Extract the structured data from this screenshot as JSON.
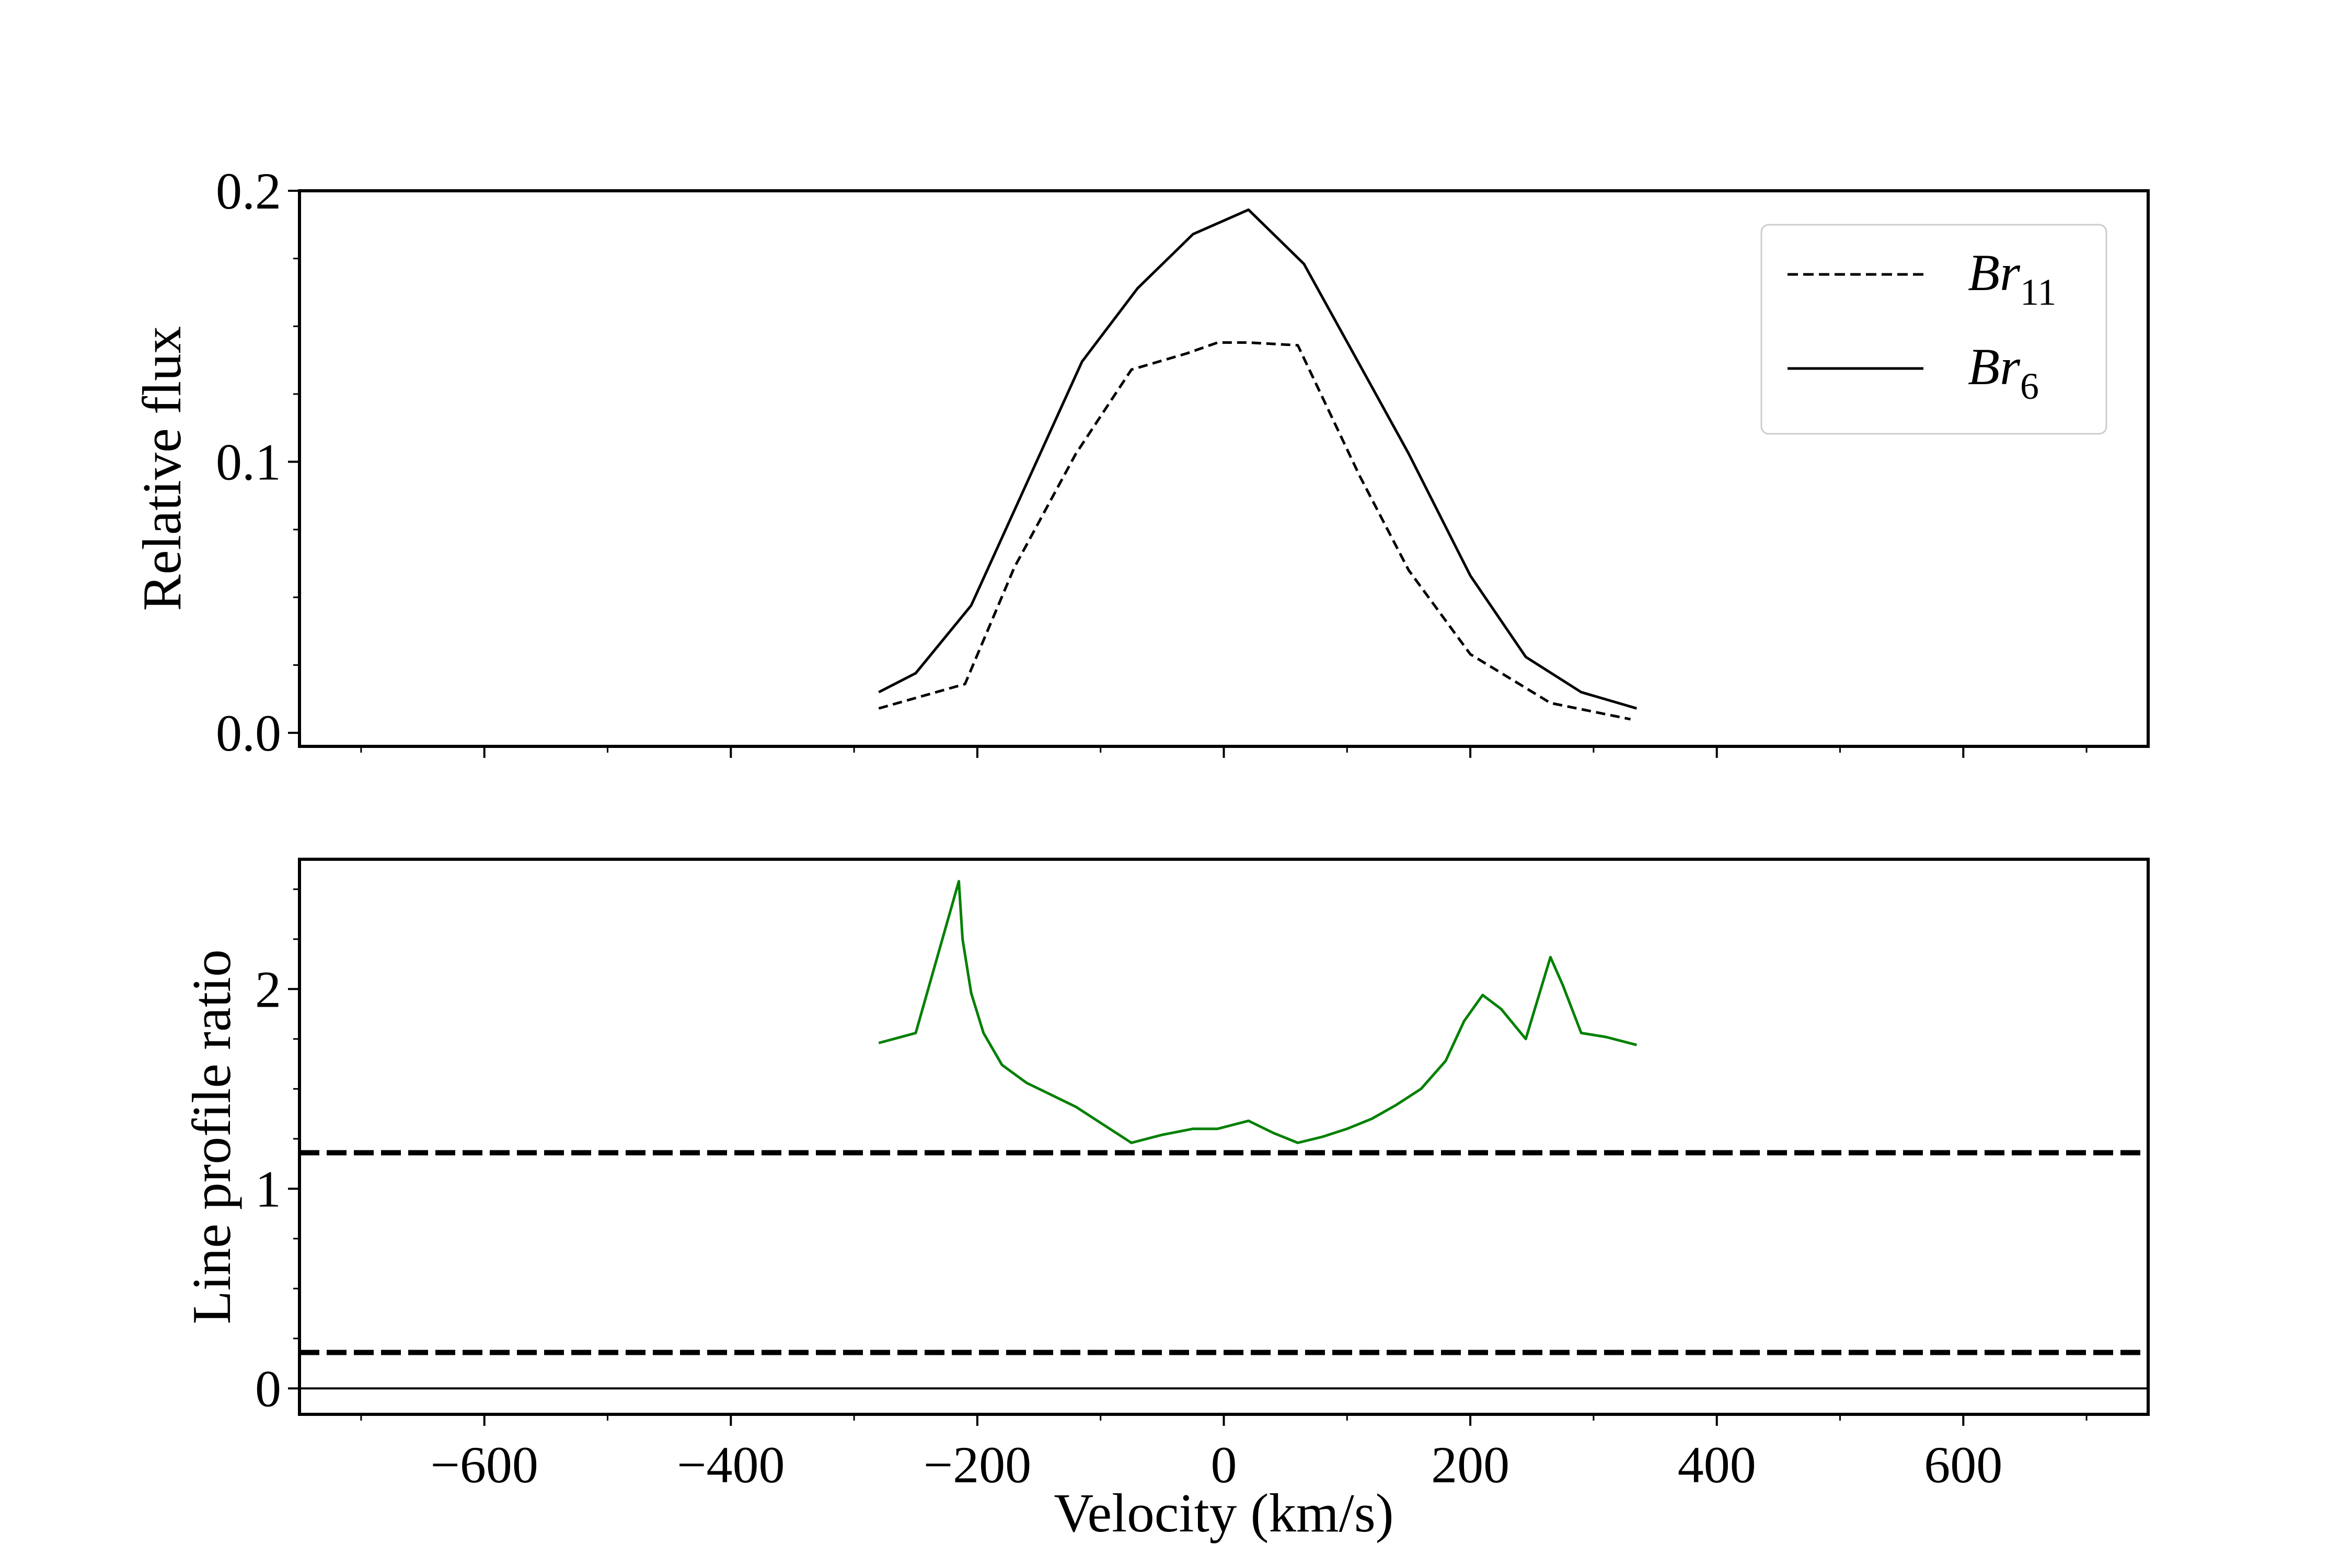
{
  "chart_data": [
    {
      "type": "line",
      "panel": "top",
      "xlabel": "",
      "ylabel": "Relative flux",
      "xlim": [
        -750,
        750
      ],
      "ylim": [
        -0.005,
        0.2
      ],
      "x_ticks": [
        -600,
        -400,
        -200,
        0,
        200,
        400,
        600
      ],
      "y_ticks": [
        0.0,
        0.1,
        0.2
      ],
      "y_tick_labels": [
        "0.0",
        "0.1",
        "0.2"
      ],
      "legend_placement": "top-right",
      "series": [
        {
          "name": "Br",
          "name_subscript": "11",
          "style": "dashed",
          "color": "#000000",
          "x": [
            -280,
            -210,
            -170,
            -120,
            -75,
            -30,
            -5,
            20,
            60,
            110,
            150,
            200,
            265,
            330
          ],
          "y": [
            0.009,
            0.018,
            0.061,
            0.103,
            0.134,
            0.14,
            0.144,
            0.144,
            0.143,
            0.095,
            0.06,
            0.029,
            0.011,
            0.005
          ]
        },
        {
          "name": "Br",
          "name_subscript": "6",
          "style": "solid",
          "color": "#000000",
          "x": [
            -280,
            -250,
            -205,
            -160,
            -115,
            -70,
            -25,
            20,
            65,
            110,
            150,
            200,
            245,
            290,
            335
          ],
          "y": [
            0.015,
            0.022,
            0.047,
            0.092,
            0.137,
            0.164,
            0.184,
            0.193,
            0.173,
            0.136,
            0.103,
            0.058,
            0.028,
            0.015,
            0.009
          ]
        }
      ]
    },
    {
      "type": "line",
      "panel": "bottom",
      "xlabel": "Velocity (km/s)",
      "ylabel": "Line profile ratio",
      "xlim": [
        -750,
        750
      ],
      "ylim": [
        -0.13,
        2.65
      ],
      "x_ticks": [
        -600,
        -400,
        -200,
        0,
        200,
        400,
        600
      ],
      "x_tick_labels": [
        "−600",
        "−400",
        "−200",
        "0",
        "200",
        "400",
        "600"
      ],
      "y_ticks": [
        0,
        1,
        2
      ],
      "y_tick_labels": [
        "0",
        "1",
        "2"
      ],
      "series": [
        {
          "style": "solid",
          "color": "#008000",
          "x": [
            -280,
            -250,
            -215,
            -212,
            -205,
            -195,
            -180,
            -160,
            -140,
            -120,
            -100,
            -75,
            -50,
            -25,
            -5,
            20,
            40,
            60,
            80,
            100,
            120,
            140,
            160,
            180,
            195,
            210,
            225,
            245,
            265,
            275,
            290,
            310,
            335
          ],
          "y": [
            1.73,
            1.78,
            2.54,
            2.25,
            1.98,
            1.78,
            1.62,
            1.53,
            1.47,
            1.41,
            1.33,
            1.23,
            1.27,
            1.3,
            1.3,
            1.34,
            1.28,
            1.23,
            1.26,
            1.3,
            1.35,
            1.42,
            1.5,
            1.64,
            1.84,
            1.97,
            1.9,
            1.75,
            2.16,
            2.02,
            1.78,
            1.76,
            1.72
          ]
        }
      ],
      "reference_lines": [
        {
          "y": 1.18,
          "style": "dashed",
          "color": "#000000"
        },
        {
          "y": 0.18,
          "style": "dashed",
          "color": "#000000"
        },
        {
          "y": 0.0,
          "style": "solid",
          "color": "#000000"
        }
      ]
    }
  ]
}
